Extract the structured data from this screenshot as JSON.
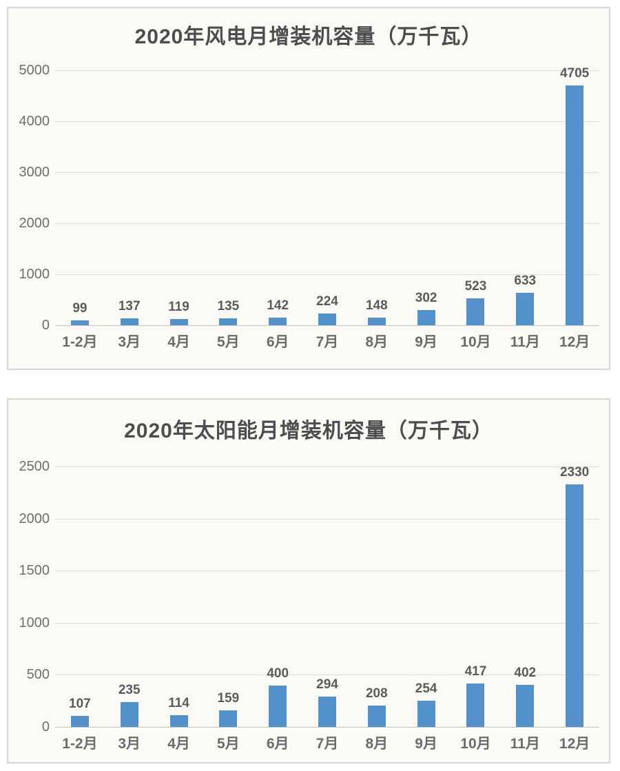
{
  "colors": {
    "bar": "#5291CB",
    "grid": "#dcdcd8",
    "axis": "#c2c2be",
    "title_text": "#4d4d4d",
    "label_text": "#5b5b5b",
    "panel_background": "#fbfaf6",
    "panel_border": "#d8d8d3"
  },
  "chart_data": [
    {
      "type": "bar",
      "title": "2020年风电月增装机容量（万千瓦）",
      "categories": [
        "1-2月",
        "3月",
        "4月",
        "5月",
        "6月",
        "7月",
        "8月",
        "9月",
        "10月",
        "11月",
        "12月"
      ],
      "values": [
        99,
        137,
        119,
        135,
        142,
        224,
        148,
        302,
        523,
        633,
        4705
      ],
      "xlabel": "",
      "ylabel": "",
      "ylim": [
        0,
        5000
      ],
      "yticks": [
        0,
        1000,
        2000,
        3000,
        4000,
        5000
      ],
      "grid": true,
      "legend": "none",
      "bar_color": "#5291CB"
    },
    {
      "type": "bar",
      "title": "2020年太阳能月增装机容量（万千瓦）",
      "categories": [
        "1-2月",
        "3月",
        "4月",
        "5月",
        "6月",
        "7月",
        "8月",
        "9月",
        "10月",
        "11月",
        "12月"
      ],
      "values": [
        107,
        235,
        114,
        159,
        400,
        294,
        208,
        254,
        417,
        402,
        2330
      ],
      "xlabel": "",
      "ylabel": "",
      "ylim": [
        0,
        2500
      ],
      "yticks": [
        0,
        500,
        1000,
        1500,
        2000,
        2500
      ],
      "grid": true,
      "legend": "none",
      "bar_color": "#5291CB"
    }
  ]
}
